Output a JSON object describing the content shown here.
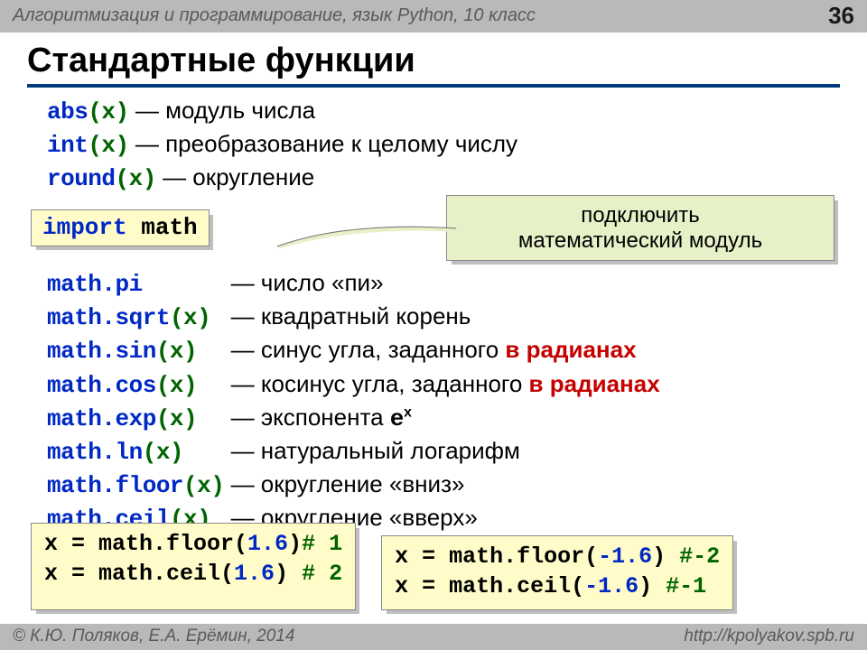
{
  "header": {
    "course": "Алгоритмизация и программирование, язык Python, 10 класс",
    "page": "36"
  },
  "title": "Стандартные функции",
  "builtins": [
    {
      "code_kw": "abs",
      "code_par": "(x)",
      "desc": "модуль числа"
    },
    {
      "code_kw": "int",
      "code_par": "(x)",
      "desc": "преобразование к целому числу"
    },
    {
      "code_kw": "round",
      "code_par": "(x)",
      "desc": "округление"
    }
  ],
  "import_kw": "import",
  "import_mod": "math",
  "callout_l1": "подключить",
  "callout_l2": "математический модуль",
  "mathfns": [
    {
      "code": "math.pi",
      "par": "",
      "desc": "число «пи»",
      "red": ""
    },
    {
      "code": "math.sqrt",
      "par": "(x)",
      "desc": "квадратный корень",
      "red": ""
    },
    {
      "code": "math.sin",
      "par": "(x)",
      "desc": "синус угла, заданного ",
      "red": "в радианах"
    },
    {
      "code": "math.cos",
      "par": "(x)",
      "desc": "косинус угла, заданного ",
      "red": "в радианах"
    },
    {
      "code": "math.exp",
      "par": "(x)",
      "desc": "экспонента ",
      "red": "",
      "sup": "e",
      "supx": "x"
    },
    {
      "code": "math.ln",
      "par": "(x)",
      "desc": "натуральный логарифм",
      "red": ""
    },
    {
      "code": "math.floor",
      "par": "(x)",
      "desc": "округление «вниз»",
      "red": ""
    },
    {
      "code": "math.ceil",
      "par": "(x)",
      "desc": "округление «вверх»",
      "red": ""
    }
  ],
  "ex1": {
    "l1_pre": "x = math.floor(",
    "l1_num": "1.6",
    "l1_post": ")",
    "l1_cmt": "# 1",
    "l2_pre": "x = math.ceil(",
    "l2_num": "1.6",
    "l2_post": ") ",
    "l2_cmt": "# 2"
  },
  "ex2": {
    "l1_pre": "x = math.floor(",
    "l1_num": "-1.6",
    "l1_post": ") ",
    "l1_cmt": "#-2",
    "l2_pre": "x = math.ceil(",
    "l2_num": "-1.6",
    "l2_post": ")  ",
    "l2_cmt": "#-1"
  },
  "footer": {
    "left": "© К.Ю. Поляков, Е.А. Ерёмин, 2014",
    "right": "http://kpolyakov.spb.ru"
  },
  "colors": {
    "keyword": "#0028c4",
    "paren": "#006400",
    "red": "#c40000",
    "box_bg": "#fffcc9",
    "callout_bg": "#e7f1c8",
    "bar_bg": "#b9b9b9",
    "rule": "#003a7a"
  }
}
